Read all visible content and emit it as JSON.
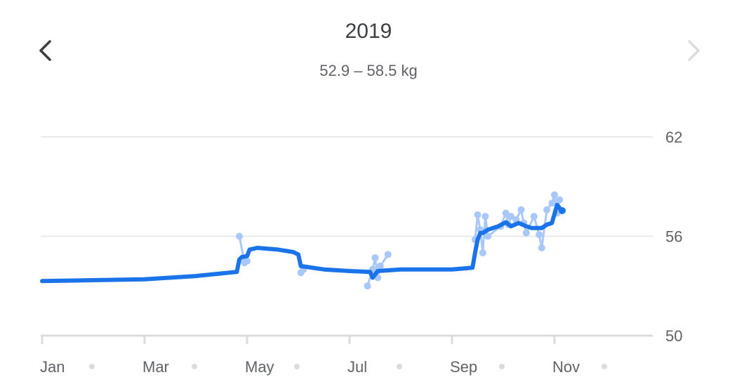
{
  "header": {
    "title": "2019",
    "subtitle": "52.9 – 58.5 kg"
  },
  "colors": {
    "trend": "#1a73e8",
    "points": "#a8c7fa",
    "grid": "#e8eaed",
    "axis": "#dadce0",
    "text": "#5f6368",
    "nav_active": "#3c4043",
    "nav_disabled": "#dadce0"
  },
  "icons": {
    "prev": "chevron-left-icon",
    "next": "chevron-right-icon"
  },
  "chart_data": {
    "type": "line",
    "title": "2019",
    "subtitle": "52.9 – 58.5 kg",
    "xlabel": "",
    "ylabel": "",
    "ylim": [
      50,
      62
    ],
    "yticks": [
      50,
      56,
      62
    ],
    "x_tick_labels": [
      "Jan",
      "Mar",
      "May",
      "Jul",
      "Sep",
      "Nov"
    ],
    "x_tick_months": [
      1,
      3,
      5,
      7,
      9,
      11
    ],
    "x_dot_months": [
      2,
      4,
      6,
      8,
      10,
      12
    ],
    "grid": true,
    "series": [
      {
        "kind": "trend",
        "points": [
          [
            1.0,
            53.3
          ],
          [
            2.0,
            53.35
          ],
          [
            3.0,
            53.4
          ],
          [
            4.0,
            53.6
          ],
          [
            4.8,
            53.85
          ],
          [
            4.85,
            54.6
          ],
          [
            4.9,
            54.75
          ],
          [
            5.0,
            54.8
          ],
          [
            5.05,
            55.2
          ],
          [
            5.2,
            55.3
          ],
          [
            5.6,
            55.2
          ],
          [
            5.9,
            55.05
          ],
          [
            6.0,
            54.9
          ],
          [
            6.05,
            54.2
          ],
          [
            6.5,
            54.0
          ],
          [
            7.0,
            53.9
          ],
          [
            7.4,
            53.85
          ],
          [
            7.45,
            53.5
          ],
          [
            7.55,
            53.9
          ],
          [
            8.0,
            54.0
          ],
          [
            9.0,
            54.0
          ],
          [
            9.4,
            54.1
          ],
          [
            9.45,
            55.0
          ],
          [
            9.5,
            55.8
          ],
          [
            9.55,
            56.2
          ],
          [
            9.6,
            56.2
          ],
          [
            9.7,
            56.4
          ],
          [
            9.9,
            56.6
          ],
          [
            10.05,
            56.85
          ],
          [
            10.15,
            56.6
          ],
          [
            10.3,
            56.8
          ],
          [
            10.45,
            56.6
          ],
          [
            10.55,
            56.5
          ],
          [
            10.75,
            56.5
          ],
          [
            10.85,
            56.7
          ],
          [
            10.95,
            56.8
          ],
          [
            11.05,
            57.9
          ],
          [
            11.1,
            57.7
          ],
          [
            11.15,
            57.55
          ]
        ]
      },
      {
        "kind": "measurements",
        "points": [
          [
            4.85,
            56.0
          ],
          [
            4.95,
            54.4
          ],
          [
            5.0,
            54.5
          ],
          [
            6.05,
            53.8
          ],
          [
            6.1,
            54.0
          ],
          [
            7.35,
            53.0
          ],
          [
            7.45,
            54.0
          ],
          [
            7.5,
            54.7
          ],
          [
            7.55,
            53.5
          ],
          [
            7.6,
            54.2
          ],
          [
            7.75,
            54.9
          ],
          [
            9.45,
            55.8
          ],
          [
            9.5,
            57.3
          ],
          [
            9.55,
            56.4
          ],
          [
            9.6,
            55.0
          ],
          [
            9.65,
            57.2
          ],
          [
            9.7,
            56.0
          ],
          [
            9.95,
            56.6
          ],
          [
            10.05,
            57.4
          ],
          [
            10.1,
            56.7
          ],
          [
            10.15,
            57.2
          ],
          [
            10.25,
            57.0
          ],
          [
            10.35,
            57.6
          ],
          [
            10.4,
            56.8
          ],
          [
            10.45,
            56.2
          ],
          [
            10.6,
            57.2
          ],
          [
            10.7,
            56.1
          ],
          [
            10.75,
            55.3
          ],
          [
            10.85,
            57.6
          ],
          [
            10.95,
            58.0
          ],
          [
            11.0,
            58.5
          ],
          [
            11.05,
            57.4
          ],
          [
            11.1,
            58.2
          ]
        ]
      }
    ]
  }
}
